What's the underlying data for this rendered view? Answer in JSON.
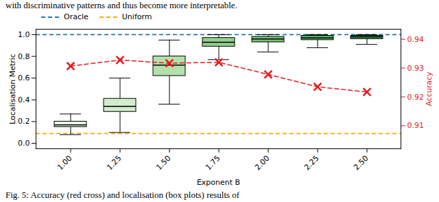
{
  "chart_data": {
    "type": "box",
    "caption_top": "with discriminative patterns and thus become more interpretable.",
    "caption_bottom": "Fig. 5: Accuracy (red cross) and localisation (box plots) results of",
    "x_label": "Exponent B",
    "y_label": "Localisation Metric",
    "y2_label": "Accuracy",
    "categories": [
      "1.00",
      "1.25",
      "1.50",
      "1.75",
      "2.00",
      "2.25",
      "2.50"
    ],
    "boxes": {
      "min": [
        0.08,
        0.1,
        0.36,
        0.77,
        0.84,
        0.88,
        0.91
      ],
      "q1": [
        0.15,
        0.29,
        0.62,
        0.89,
        0.93,
        0.95,
        0.96
      ],
      "median": [
        0.17,
        0.34,
        0.72,
        0.93,
        0.96,
        0.97,
        0.98
      ],
      "q3": [
        0.2,
        0.41,
        0.8,
        0.97,
        0.98,
        0.99,
        0.99
      ],
      "max": [
        0.27,
        0.6,
        0.95,
        1.0,
        1.0,
        1.0,
        1.0
      ],
      "colors": [
        "#e5f5e0",
        "#d2edcb",
        "#b5e0ad",
        "#93d08e",
        "#74c476",
        "#52b060",
        "#3a9a4f"
      ]
    },
    "series": [
      {
        "name": "Accuracy",
        "type": "line",
        "axis": "y2",
        "color": "#e41a1c",
        "marker": "x",
        "line_style": "dashed",
        "values": [
          0.9307,
          0.9328,
          0.9317,
          0.932,
          0.9278,
          0.9235,
          0.9217
        ]
      }
    ],
    "reference_lines": [
      {
        "name": "Oracle",
        "value": 1.0,
        "color": "#1f77b4",
        "line_style": "dashed"
      },
      {
        "name": "Uniform",
        "value": 0.09,
        "color": "#ffa500",
        "line_style": "dashed"
      }
    ],
    "ylim": [
      -0.05,
      1.05
    ],
    "yticks": [
      {
        "value": 0,
        "label": "0.0"
      },
      0.2,
      0.4,
      0.6,
      0.8,
      {
        "value": 1,
        "label": "1.0"
      }
    ],
    "y2lim": [
      0.902,
      0.9435
    ],
    "y2ticks": [
      0.91,
      0.92,
      0.93,
      0.94
    ],
    "legend": "top",
    "grid": false
  }
}
